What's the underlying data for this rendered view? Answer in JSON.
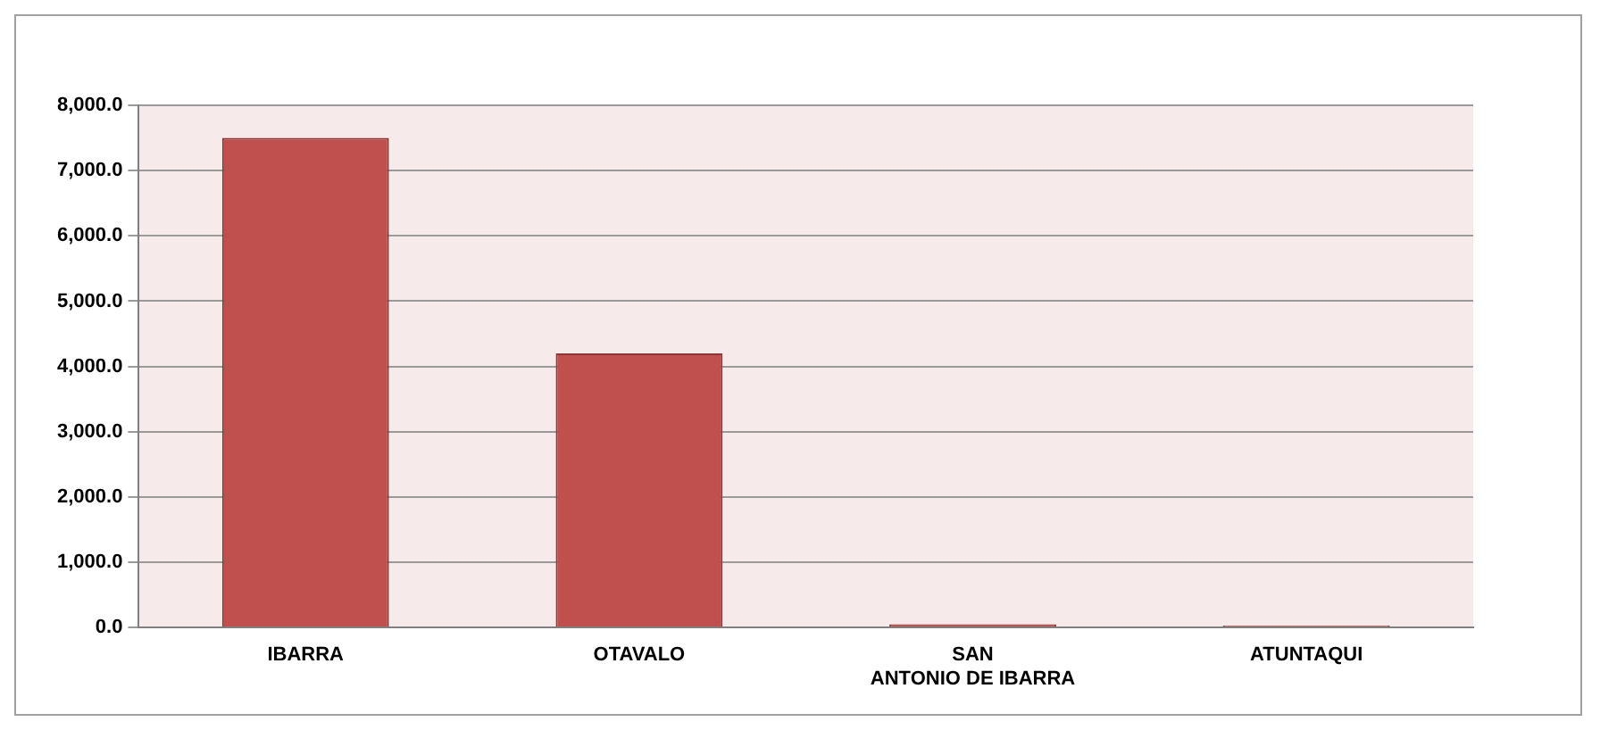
{
  "chart_data": {
    "type": "bar",
    "categories": [
      "IBARRA",
      "OTAVALO",
      "SAN ANTONIO DE IBARRA",
      "ATUNTAQUI"
    ],
    "values": [
      7500,
      4200,
      50,
      30
    ],
    "color": "#c0504d",
    "ylim": [
      0,
      8000
    ],
    "yticks": [
      {
        "value": 0,
        "label": "0.0"
      },
      {
        "value": 1000,
        "label": "1,000.0"
      },
      {
        "value": 2000,
        "label": "2,000.0"
      },
      {
        "value": 3000,
        "label": "3,000.0"
      },
      {
        "value": 4000,
        "label": "4,000.0"
      },
      {
        "value": 5000,
        "label": "5,000.0"
      },
      {
        "value": 6000,
        "label": "6,000.0"
      },
      {
        "value": 7000,
        "label": "7,000.0"
      },
      {
        "value": 8000,
        "label": "8,000.0"
      }
    ],
    "grid": "y",
    "legend": false
  }
}
